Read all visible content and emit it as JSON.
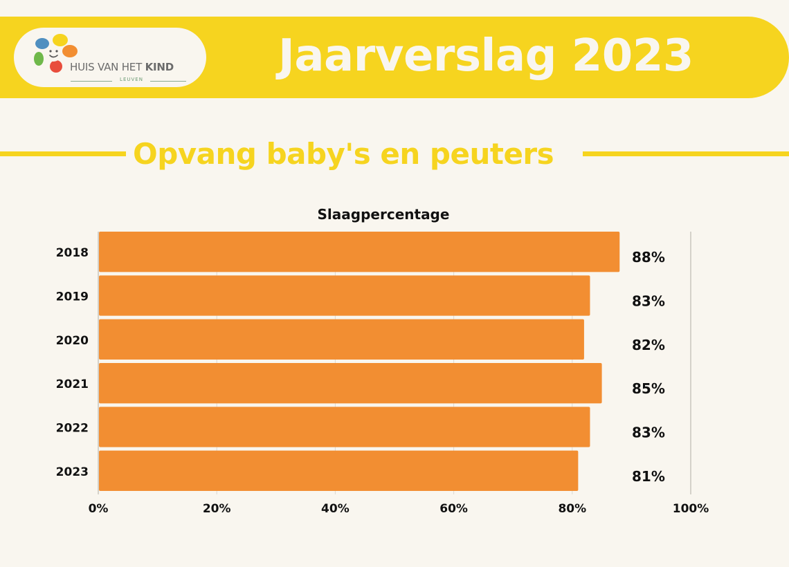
{
  "header": {
    "title": "Jaarverslag 2023",
    "logo": {
      "name_prefix": "HUIS VAN HET",
      "name_emphasis": "KIND",
      "city": "LEUVEN"
    }
  },
  "section": {
    "title": "Opvang baby's en peuters"
  },
  "colors": {
    "background": "#f9f6ef",
    "accent_yellow": "#f6d41f",
    "bar": "#f28e32",
    "text": "#111111"
  },
  "chart_data": {
    "type": "bar",
    "orientation": "horizontal",
    "title": "Slaagpercentage",
    "categories": [
      "2018",
      "2019",
      "2020",
      "2021",
      "2022",
      "2023"
    ],
    "values": [
      88,
      83,
      82,
      85,
      83,
      81
    ],
    "data_labels": [
      "88%",
      "83%",
      "82%",
      "85%",
      "83%",
      "81%"
    ],
    "xlim": [
      0,
      100
    ],
    "x_ticks": [
      0,
      20,
      40,
      60,
      80,
      100
    ],
    "x_tick_labels": [
      "0%",
      "20%",
      "40%",
      "60%",
      "80%",
      "100%"
    ],
    "grid": true,
    "legend": "none"
  }
}
